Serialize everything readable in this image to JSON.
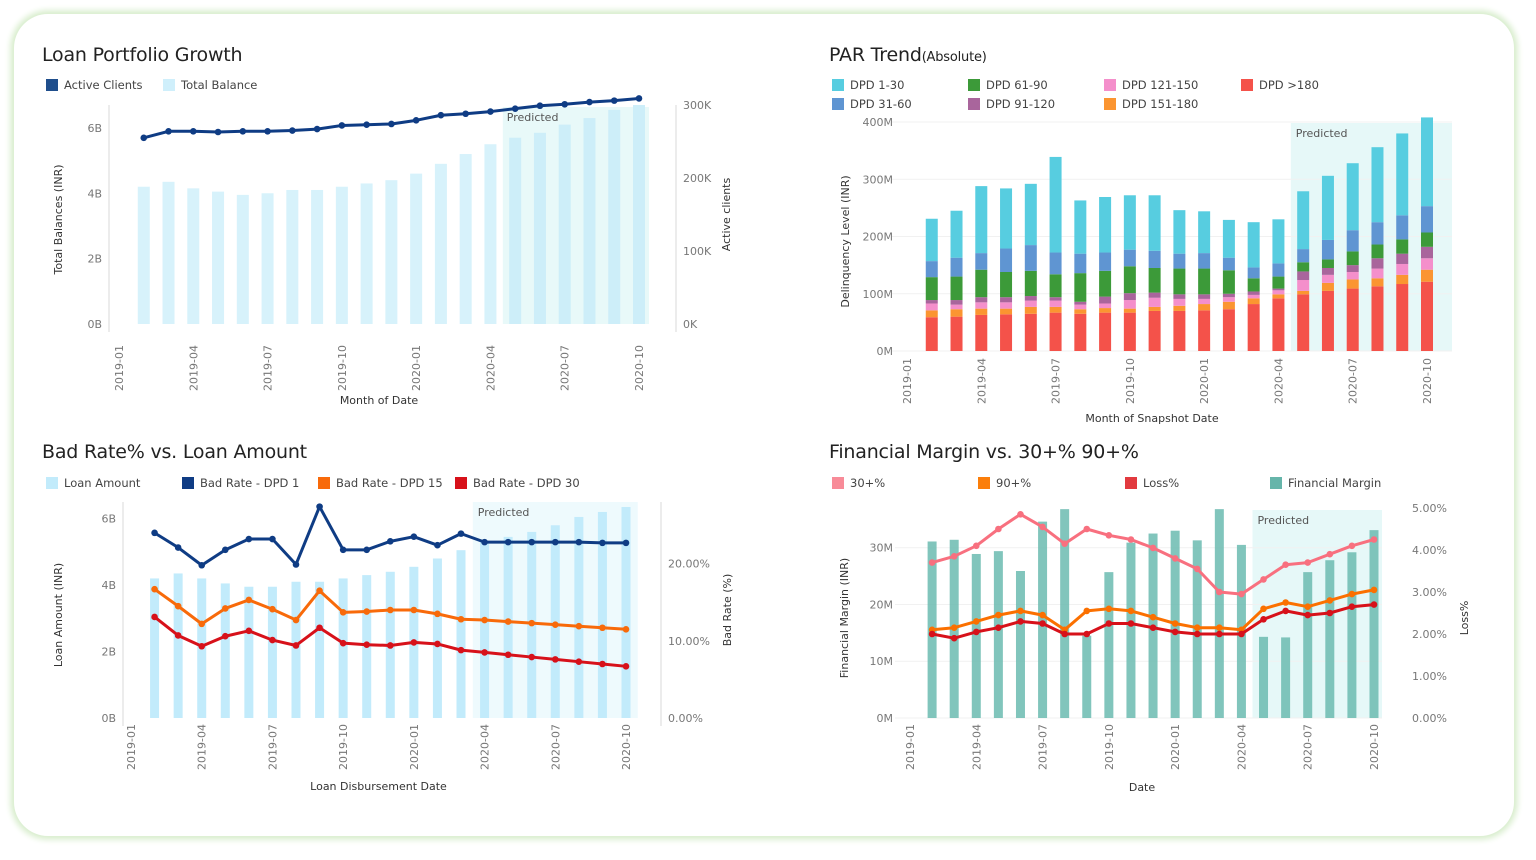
{
  "dashboard": {
    "panels": [
      {
        "title": "Loan Portfolio Growth",
        "legend": [
          {
            "label": "Active Clients",
            "color": "#1f4e8c"
          },
          {
            "label": "Total Balance",
            "color": "#cfeffb"
          }
        ]
      },
      {
        "title": "PAR Trend",
        "title_suffix": "(Absolute)",
        "legend": [
          {
            "label": "DPD 1-30",
            "color": "#57cde0"
          },
          {
            "label": "DPD 31-60",
            "color": "#5f95d2"
          },
          {
            "label": "DPD 61-90",
            "color": "#3c9a39"
          },
          {
            "label": "DPD 91-120",
            "color": "#a9659c"
          },
          {
            "label": "DPD 121-150",
            "color": "#f48fcb"
          },
          {
            "label": "DPD 151-180",
            "color": "#fb9531"
          },
          {
            "label": "DPD >180",
            "color": "#f4524a"
          }
        ]
      },
      {
        "title": "Bad Rate% vs. Loan Amount",
        "legend": [
          {
            "label": "Loan Amount",
            "color": "#c2ebfb"
          },
          {
            "label": "Bad Rate - DPD 1",
            "color": "#0f3c84"
          },
          {
            "label": "Bad Rate - DPD 15",
            "color": "#f86a0a"
          },
          {
            "label": "Bad Rate - DPD 30",
            "color": "#d7111a"
          }
        ]
      },
      {
        "title": "Financial Margin vs. 30+% 90+%",
        "legend": [
          {
            "label": "30+%",
            "color": "#f88b98"
          },
          {
            "label": "90+%",
            "color": "#fb7e0a"
          },
          {
            "label": "Loss%",
            "color": "#e23a3f"
          },
          {
            "label": "Financial Margin",
            "color": "#66b5aa"
          }
        ]
      }
    ]
  },
  "chart_data": [
    {
      "type": "bar",
      "title": "Loan Portfolio Growth",
      "xlabel": "Month of Date",
      "ylabel": "Total Balances (INR)",
      "y2label": "Active clients",
      "x_ticks": [
        "2019-01",
        "2019-04",
        "2019-07",
        "2019-10",
        "2020-01",
        "2020-04",
        "2020-07",
        "2020-10"
      ],
      "y_ticks": [
        "0B",
        "2B",
        "4B",
        "6B"
      ],
      "y2_ticks": [
        "0K",
        "100K",
        "200K",
        "300K"
      ],
      "ylim": [
        0,
        6.7
      ],
      "y2lim": [
        0,
        300
      ],
      "predicted_label": "Predicted",
      "predicted_from": "2020-05",
      "categories": [
        "2019-02",
        "2019-03",
        "2019-04",
        "2019-05",
        "2019-06",
        "2019-07",
        "2019-08",
        "2019-09",
        "2019-10",
        "2019-11",
        "2019-12",
        "2020-01",
        "2020-02",
        "2020-03",
        "2020-04",
        "2020-05",
        "2020-06",
        "2020-07",
        "2020-08",
        "2020-09",
        "2020-10"
      ],
      "series": [
        {
          "name": "Total Balance",
          "kind": "bar",
          "unit": "B INR",
          "values": [
            4.2,
            4.35,
            4.15,
            4.05,
            3.95,
            4.0,
            4.1,
            4.1,
            4.2,
            4.3,
            4.4,
            4.6,
            4.9,
            5.2,
            5.5,
            5.7,
            5.85,
            6.1,
            6.3,
            6.55,
            6.7
          ]
        },
        {
          "name": "Active Clients",
          "kind": "line",
          "unit": "K",
          "values": [
            255,
            264,
            264,
            263,
            264,
            264,
            265,
            267,
            272,
            273,
            274,
            279,
            286,
            288,
            291,
            295,
            299,
            301,
            304,
            306,
            309
          ]
        }
      ]
    },
    {
      "type": "bar",
      "stacked": true,
      "title": "PAR Trend(Absolute)",
      "xlabel": "Month of Snapshot Date",
      "ylabel": "Delinquency Level (INR)",
      "x_ticks": [
        "2019-01",
        "2019-04",
        "2019-07",
        "2019-10",
        "2020-01",
        "2020-04",
        "2020-07",
        "2020-10"
      ],
      "y_ticks": [
        "0M",
        "100M",
        "200M",
        "300M",
        "400M"
      ],
      "ylim": [
        0,
        400
      ],
      "predicted_label": "Predicted",
      "predicted_from": "2020-05",
      "categories": [
        "2019-02",
        "2019-03",
        "2019-04",
        "2019-05",
        "2019-06",
        "2019-07",
        "2019-08",
        "2019-09",
        "2019-10",
        "2019-11",
        "2019-12",
        "2020-01",
        "2020-02",
        "2020-03",
        "2020-04",
        "2020-05",
        "2020-06",
        "2020-07",
        "2020-08",
        "2020-09",
        "2020-10"
      ],
      "series": [
        {
          "name": "DPD >180",
          "values": [
            59,
            60,
            63,
            64,
            65,
            67,
            65,
            67,
            67,
            70,
            70,
            71,
            73,
            82,
            92,
            99,
            105,
            109,
            113,
            117,
            121
          ]
        },
        {
          "name": "DPD 151-180",
          "values": [
            12,
            13,
            11,
            10,
            12,
            10,
            8,
            8,
            7,
            7,
            9,
            11,
            13,
            10,
            7,
            6,
            14,
            16,
            14,
            16,
            21
          ]
        },
        {
          "name": "DPD 121-150",
          "values": [
            12,
            8,
            11,
            11,
            11,
            11,
            8,
            8,
            15,
            16,
            12,
            9,
            8,
            6,
            7,
            19,
            14,
            13,
            17,
            19,
            20
          ]
        },
        {
          "name": "DPD 91-120",
          "values": [
            6,
            8,
            9,
            9,
            8,
            6,
            5,
            12,
            12,
            9,
            8,
            8,
            6,
            6,
            3,
            15,
            12,
            12,
            18,
            18,
            20
          ]
        },
        {
          "name": "DPD 61-90",
          "values": [
            40,
            41,
            48,
            44,
            44,
            40,
            50,
            45,
            47,
            43,
            45,
            45,
            41,
            23,
            21,
            16,
            15,
            24,
            24,
            25,
            25
          ]
        },
        {
          "name": "DPD 31-60",
          "values": [
            28,
            33,
            29,
            41,
            45,
            38,
            34,
            32,
            29,
            30,
            26,
            27,
            22,
            19,
            23,
            23,
            34,
            37,
            39,
            42,
            46
          ]
        },
        {
          "name": "DPD 1-30",
          "values": [
            74,
            82,
            117,
            105,
            107,
            167,
            93,
            97,
            95,
            97,
            76,
            73,
            66,
            79,
            77,
            101,
            112,
            117,
            131,
            143,
            155
          ]
        }
      ]
    },
    {
      "type": "bar",
      "title": "Bad Rate% vs. Loan Amount",
      "xlabel": "Loan Disbursement Date",
      "ylabel": "Loan Amount (INR)",
      "y2label": "Bad Rate (%)",
      "x_ticks": [
        "2019-01",
        "2019-04",
        "2019-07",
        "2019-10",
        "2020-01",
        "2020-04",
        "2020-07",
        "2020-10"
      ],
      "y_ticks": [
        "0B",
        "2B",
        "4B",
        "6B"
      ],
      "y2_ticks": [
        "0.00%",
        "10.00%",
        "20.00%"
      ],
      "ylim": [
        0,
        6.5
      ],
      "y2lim": [
        0,
        28
      ],
      "predicted_label": "Predicted",
      "predicted_from": "2020-04",
      "categories": [
        "2019-02",
        "2019-03",
        "2019-04",
        "2019-05",
        "2019-06",
        "2019-07",
        "2019-08",
        "2019-09",
        "2019-10",
        "2019-11",
        "2019-12",
        "2020-01",
        "2020-02",
        "2020-03",
        "2020-04",
        "2020-05",
        "2020-06",
        "2020-07",
        "2020-08",
        "2020-09",
        "2020-10"
      ],
      "series": [
        {
          "name": "Loan Amount",
          "kind": "bar",
          "unit": "B INR",
          "values": [
            4.2,
            4.35,
            4.2,
            4.05,
            3.95,
            3.95,
            4.1,
            4.1,
            4.2,
            4.3,
            4.4,
            4.55,
            4.8,
            5.05,
            5.3,
            5.45,
            5.6,
            5.8,
            6.05,
            6.2,
            6.35
          ]
        },
        {
          "name": "Bad Rate - DPD 1",
          "kind": "line",
          "unit": "%",
          "values": [
            24.0,
            22.1,
            19.8,
            21.8,
            23.2,
            23.2,
            19.9,
            27.4,
            21.8,
            21.8,
            22.9,
            23.5,
            22.4,
            23.9,
            22.8,
            22.8,
            22.8,
            22.8,
            22.8,
            22.7,
            22.7
          ]
        },
        {
          "name": "Bad Rate - DPD 15",
          "kind": "line",
          "unit": "%",
          "values": [
            16.7,
            14.5,
            12.2,
            14.2,
            15.3,
            14.1,
            12.7,
            16.5,
            13.7,
            13.8,
            14.0,
            14.0,
            13.5,
            12.8,
            12.7,
            12.5,
            12.3,
            12.1,
            11.9,
            11.7,
            11.5
          ]
        },
        {
          "name": "Bad Rate - DPD 30",
          "kind": "line",
          "unit": "%",
          "values": [
            13.1,
            10.7,
            9.3,
            10.6,
            11.3,
            10.1,
            9.4,
            11.7,
            9.7,
            9.5,
            9.4,
            9.8,
            9.6,
            8.8,
            8.5,
            8.2,
            7.9,
            7.6,
            7.3,
            7.0,
            6.7
          ]
        }
      ]
    },
    {
      "type": "bar",
      "title": "Financial Margin vs. 30+% 90+%",
      "xlabel": "Date",
      "ylabel": "Financial Margin (INR)",
      "y2label": "Loss%",
      "x_ticks": [
        "2019-01",
        "2019-04",
        "2019-07",
        "2019-10",
        "2020-01",
        "2020-04",
        "2020-07",
        "2020-10"
      ],
      "y_ticks": [
        "0M",
        "10M",
        "20M",
        "30M"
      ],
      "y2_ticks": [
        "0.00%",
        "1.00%",
        "2.00%",
        "3.00%",
        "4.00%",
        "5.00%"
      ],
      "ylim": [
        0,
        37
      ],
      "y2lim": [
        0,
        5
      ],
      "predicted_label": "Predicted",
      "predicted_from": "2020-05",
      "categories": [
        "2019-02",
        "2019-03",
        "2019-04",
        "2019-05",
        "2019-06",
        "2019-07",
        "2019-08",
        "2019-09",
        "2019-10",
        "2019-11",
        "2019-12",
        "2020-01",
        "2020-02",
        "2020-03",
        "2020-04",
        "2020-05",
        "2020-06",
        "2020-07",
        "2020-08",
        "2020-09",
        "2020-10"
      ],
      "series": [
        {
          "name": "Financial Margin",
          "kind": "bar",
          "unit": "M INR",
          "values": [
            31.1,
            31.4,
            28.9,
            29.4,
            25.9,
            34.6,
            36.8,
            14.5,
            25.7,
            30.9,
            32.5,
            33.0,
            31.3,
            36.8,
            30.5,
            14.3,
            14.2,
            25.7,
            27.8,
            29.2,
            33.1
          ]
        },
        {
          "name": "30+%",
          "kind": "line",
          "unit": "%",
          "values": [
            3.7,
            3.85,
            4.1,
            4.5,
            4.85,
            4.55,
            4.15,
            4.5,
            4.35,
            4.25,
            4.05,
            3.8,
            3.55,
            3.0,
            2.95,
            3.3,
            3.65,
            3.7,
            3.9,
            4.1,
            4.25
          ]
        },
        {
          "name": "90+%",
          "kind": "line",
          "unit": "%",
          "values": [
            2.1,
            2.15,
            2.3,
            2.45,
            2.55,
            2.45,
            2.1,
            2.55,
            2.6,
            2.55,
            2.4,
            2.25,
            2.15,
            2.15,
            2.1,
            2.6,
            2.75,
            2.65,
            2.8,
            2.95,
            3.05
          ]
        },
        {
          "name": "Loss%",
          "kind": "line",
          "unit": "%",
          "values": [
            2.0,
            1.9,
            2.05,
            2.15,
            2.3,
            2.25,
            2.0,
            2.0,
            2.25,
            2.25,
            2.15,
            2.05,
            2.0,
            2.0,
            2.0,
            2.35,
            2.55,
            2.45,
            2.5,
            2.65,
            2.7
          ]
        }
      ]
    }
  ]
}
